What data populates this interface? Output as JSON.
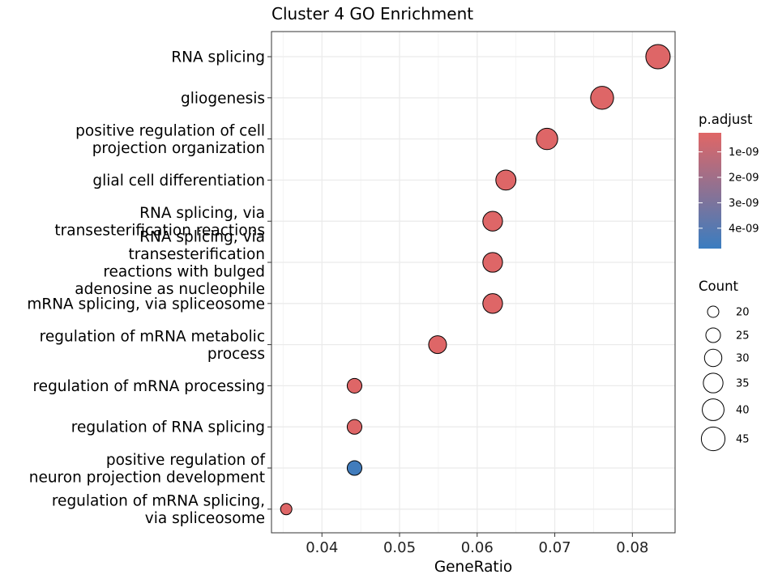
{
  "chart_data": {
    "type": "scatter",
    "title": "Cluster 4 GO Enrichment",
    "xlabel": "GeneRatio",
    "ylabel": "",
    "xlim": [
      0.0335,
      0.0855
    ],
    "xticks": [
      "0.04",
      "0.05",
      "0.06",
      "0.07",
      "0.08"
    ],
    "xtick_values": [
      0.04,
      0.05,
      0.06,
      0.07,
      0.08
    ],
    "grid": true,
    "legend_position": "right",
    "terms": [
      {
        "label": [
          "RNA splicing"
        ],
        "gene_ratio": 0.0833,
        "count": 47,
        "p_adjust": 3e-10
      },
      {
        "label": [
          "gliogenesis"
        ],
        "gene_ratio": 0.0761,
        "count": 43,
        "p_adjust": 3e-10
      },
      {
        "label": [
          "positive regulation of cell",
          "projection organization"
        ],
        "gene_ratio": 0.069,
        "count": 39,
        "p_adjust": 3e-10
      },
      {
        "label": [
          "glial cell differentiation"
        ],
        "gene_ratio": 0.0637,
        "count": 36,
        "p_adjust": 3e-10
      },
      {
        "label": [
          "RNA splicing, via",
          "transesterification reactions"
        ],
        "gene_ratio": 0.062,
        "count": 35,
        "p_adjust": 3e-10
      },
      {
        "label": [
          "RNA splicing, via",
          "transesterification",
          "reactions with bulged",
          "adenosine as nucleophile"
        ],
        "gene_ratio": 0.062,
        "count": 35,
        "p_adjust": 3e-10
      },
      {
        "label": [
          "mRNA splicing, via spliceosome"
        ],
        "gene_ratio": 0.062,
        "count": 35,
        "p_adjust": 3e-10
      },
      {
        "label": [
          "regulation of mRNA metabolic",
          "process"
        ],
        "gene_ratio": 0.0549,
        "count": 31,
        "p_adjust": 3e-10
      },
      {
        "label": [
          "regulation of mRNA processing"
        ],
        "gene_ratio": 0.0442,
        "count": 25,
        "p_adjust": 3e-10
      },
      {
        "label": [
          "regulation of RNA splicing"
        ],
        "gene_ratio": 0.0442,
        "count": 25,
        "p_adjust": 3e-10
      },
      {
        "label": [
          "positive regulation of",
          "neuron projection development"
        ],
        "gene_ratio": 0.0442,
        "count": 25,
        "p_adjust": 4.6e-09
      },
      {
        "label": [
          "regulation of mRNA splicing,",
          "via spliceosome"
        ],
        "gene_ratio": 0.0354,
        "count": 20,
        "p_adjust": 3e-10
      }
    ],
    "color_legend": {
      "title": "p.adjust",
      "ticks": [
        "1e-09",
        "2e-09",
        "3e-09",
        "4e-09"
      ],
      "tick_values": [
        1e-09,
        2e-09,
        3e-09,
        4e-09
      ],
      "range": [
        2.5e-10,
        4.8e-09
      ],
      "low_color": "#E06666",
      "high_color": "#3A7DC0"
    },
    "size_legend": {
      "title": "Count",
      "ticks": [
        "20",
        "25",
        "30",
        "35",
        "40",
        "45"
      ],
      "tick_values": [
        20,
        25,
        30,
        35,
        40,
        45
      ]
    }
  }
}
